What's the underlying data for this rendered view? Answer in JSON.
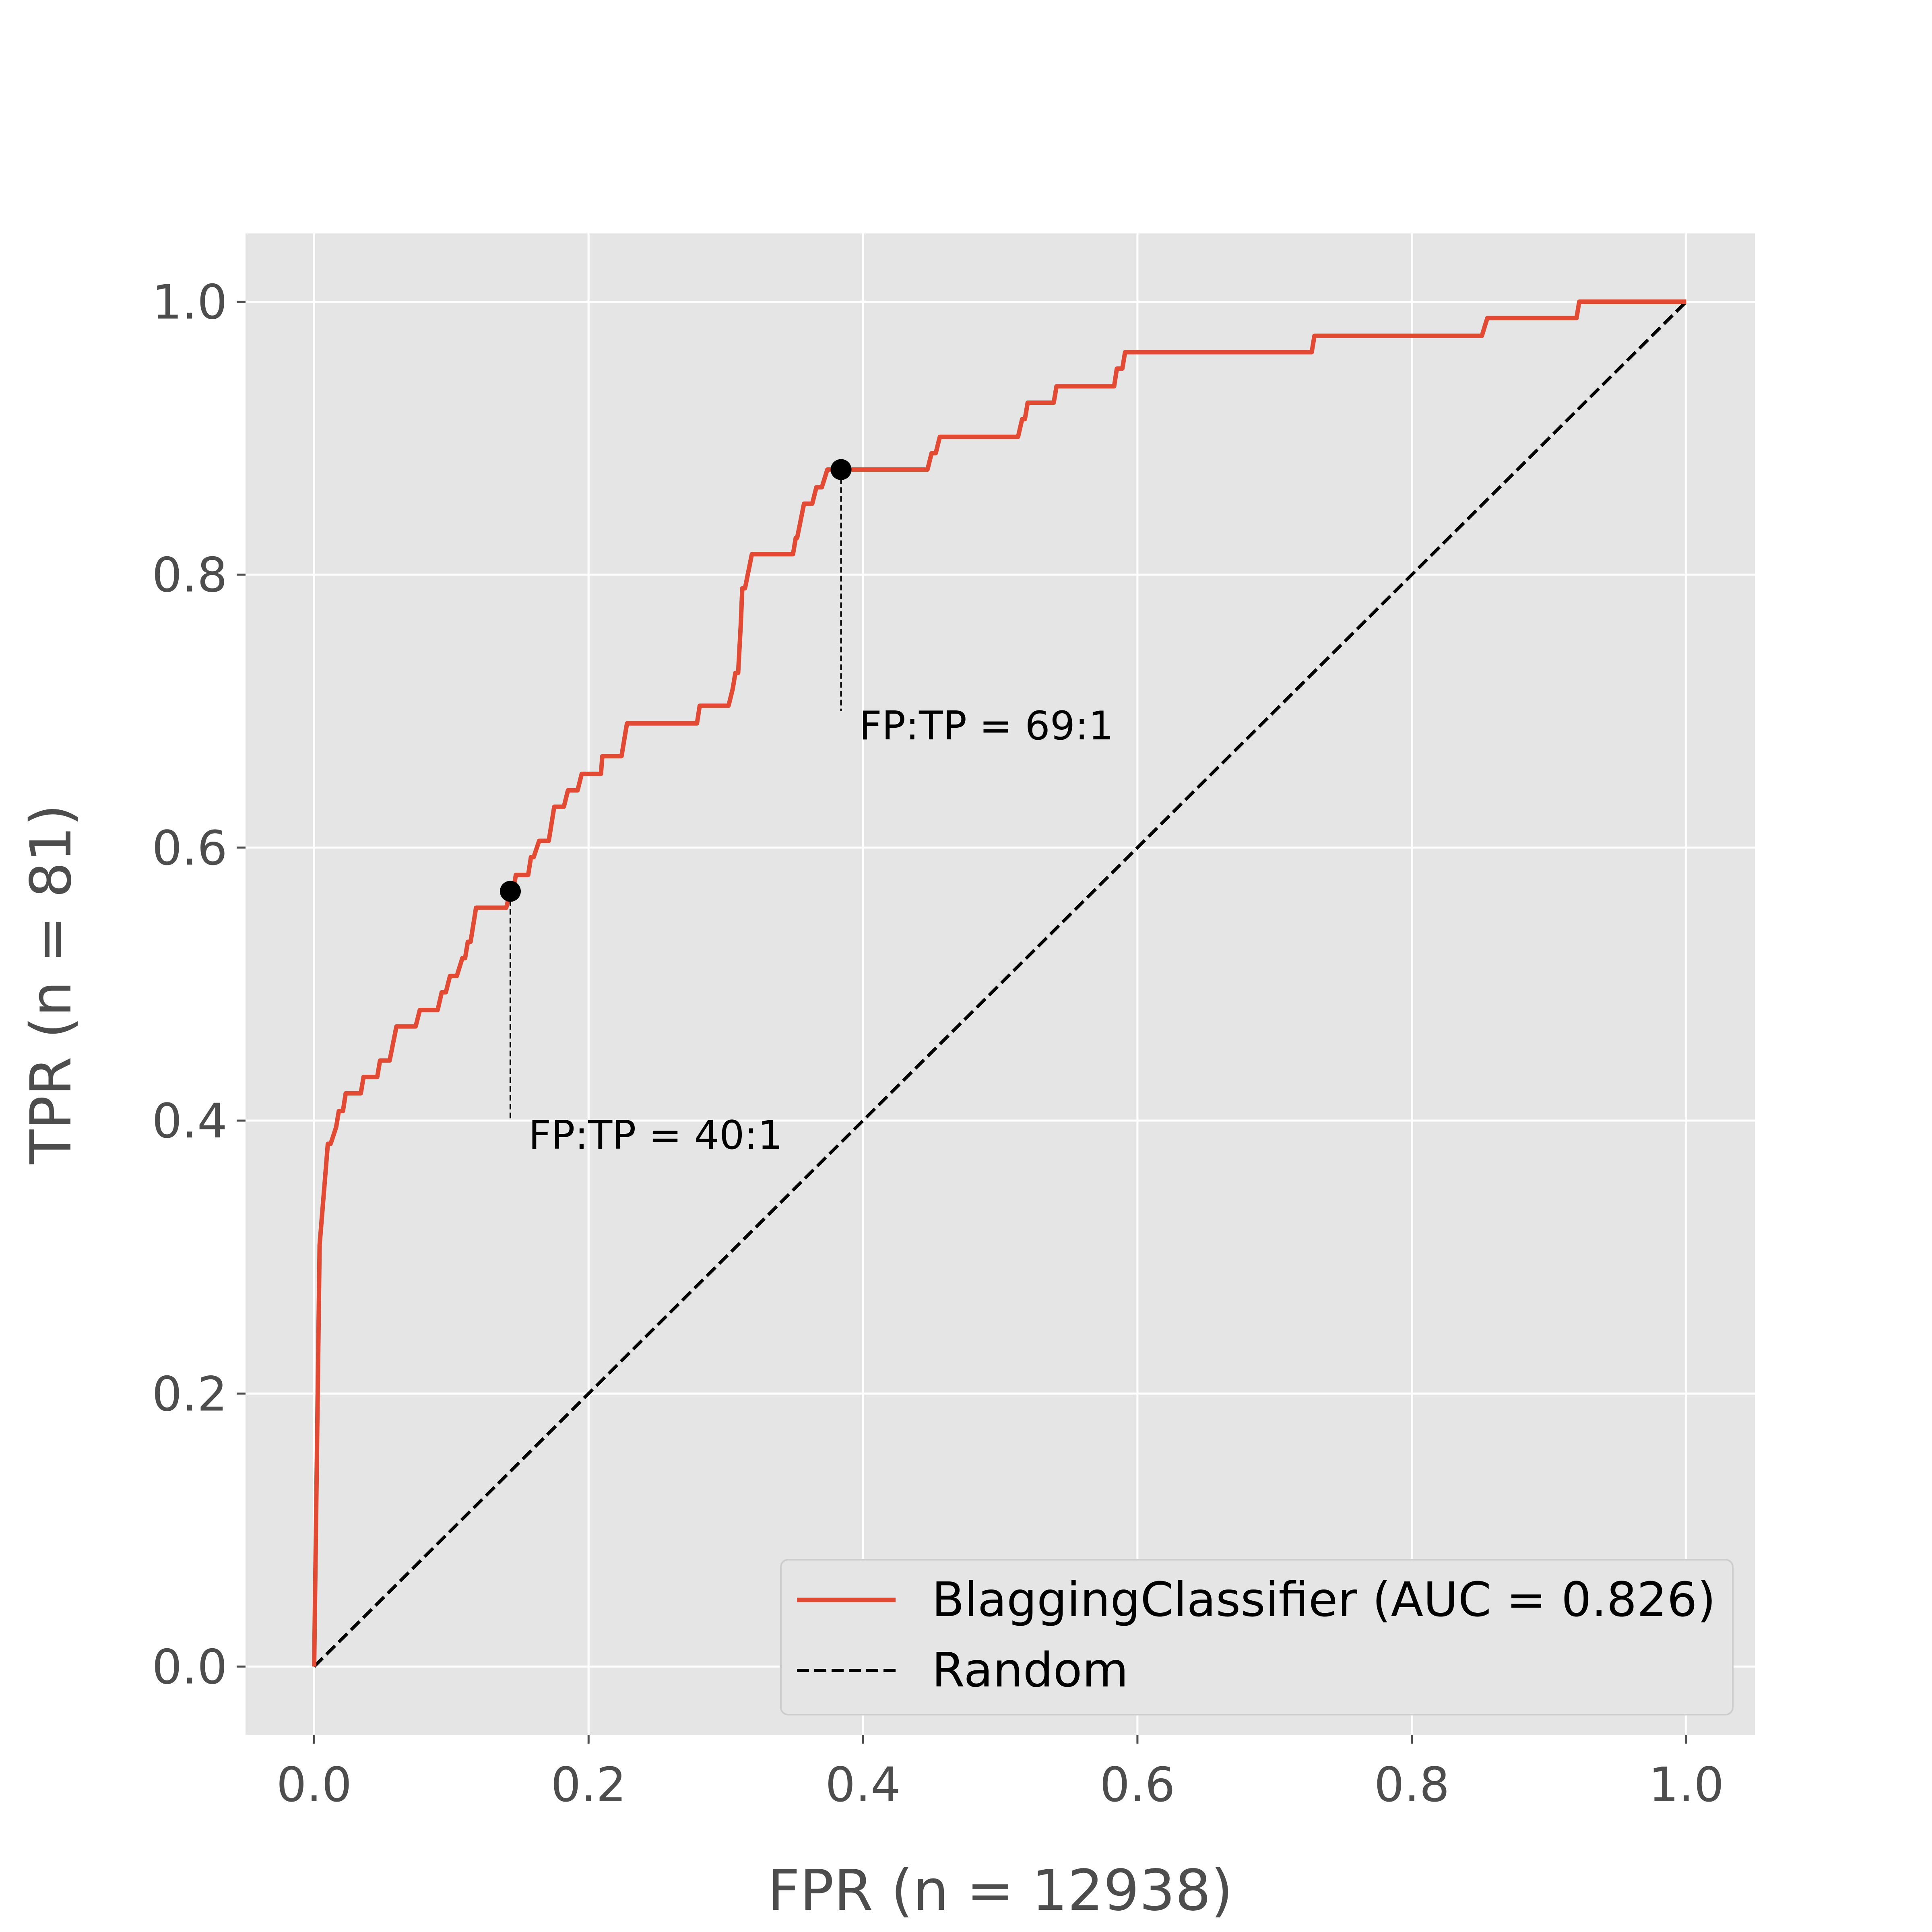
{
  "chart_data": {
    "type": "line",
    "xlabel": "FPR (n = 12938)",
    "ylabel": "TPR (n = 81)",
    "xlim": [
      -0.05,
      1.05
    ],
    "ylim": [
      -0.05,
      1.05
    ],
    "x_ticks": [
      0.0,
      0.2,
      0.4,
      0.6,
      0.8,
      1.0
    ],
    "y_ticks": [
      0.0,
      0.2,
      0.4,
      0.6,
      0.8,
      1.0
    ],
    "x_tick_labels": [
      "0.0",
      "0.2",
      "0.4",
      "0.6",
      "0.8",
      "1.0"
    ],
    "y_tick_labels": [
      "0.0",
      "0.2",
      "0.4",
      "0.6",
      "0.8",
      "1.0"
    ],
    "grid": true,
    "legend_position": "lower-right",
    "colors": {
      "background": "#e5e5e5",
      "grid": "#ffffff",
      "roc": "#e24a33",
      "random": "#000000",
      "text": "#4d4d4d"
    },
    "series": [
      {
        "name": "BlaggingClassifier (AUC = 0.826)",
        "style": "solid",
        "points": [
          [
            0.0,
            0.0
          ],
          [
            0.004,
            0.309
          ],
          [
            0.01,
            0.383
          ],
          [
            0.012,
            0.383
          ],
          [
            0.016,
            0.395
          ],
          [
            0.018,
            0.407
          ],
          [
            0.021,
            0.407
          ],
          [
            0.023,
            0.42
          ],
          [
            0.034,
            0.42
          ],
          [
            0.036,
            0.432
          ],
          [
            0.046,
            0.432
          ],
          [
            0.048,
            0.444
          ],
          [
            0.055,
            0.444
          ],
          [
            0.06,
            0.469
          ],
          [
            0.074,
            0.469
          ],
          [
            0.077,
            0.481
          ],
          [
            0.09,
            0.481
          ],
          [
            0.093,
            0.494
          ],
          [
            0.096,
            0.494
          ],
          [
            0.099,
            0.506
          ],
          [
            0.104,
            0.506
          ],
          [
            0.108,
            0.519
          ],
          [
            0.11,
            0.519
          ],
          [
            0.112,
            0.531
          ],
          [
            0.114,
            0.531
          ],
          [
            0.118,
            0.556
          ],
          [
            0.14,
            0.556
          ],
          [
            0.143,
            0.568
          ],
          [
            0.145,
            0.568
          ],
          [
            0.147,
            0.58
          ],
          [
            0.156,
            0.58
          ],
          [
            0.158,
            0.593
          ],
          [
            0.16,
            0.593
          ],
          [
            0.164,
            0.605
          ],
          [
            0.171,
            0.605
          ],
          [
            0.175,
            0.63
          ],
          [
            0.182,
            0.63
          ],
          [
            0.185,
            0.642
          ],
          [
            0.192,
            0.642
          ],
          [
            0.195,
            0.654
          ],
          [
            0.209,
            0.654
          ],
          [
            0.21,
            0.667
          ],
          [
            0.224,
            0.667
          ],
          [
            0.228,
            0.691
          ],
          [
            0.279,
            0.691
          ],
          [
            0.281,
            0.704
          ],
          [
            0.302,
            0.704
          ],
          [
            0.305,
            0.716
          ],
          [
            0.307,
            0.728
          ],
          [
            0.309,
            0.728
          ],
          [
            0.311,
            0.765
          ],
          [
            0.312,
            0.79
          ],
          [
            0.314,
            0.79
          ],
          [
            0.319,
            0.815
          ],
          [
            0.349,
            0.815
          ],
          [
            0.351,
            0.827
          ],
          [
            0.352,
            0.827
          ],
          [
            0.357,
            0.852
          ],
          [
            0.363,
            0.852
          ],
          [
            0.366,
            0.864
          ],
          [
            0.37,
            0.864
          ],
          [
            0.374,
            0.877
          ],
          [
            0.447,
            0.877
          ],
          [
            0.45,
            0.889
          ],
          [
            0.453,
            0.889
          ],
          [
            0.456,
            0.901
          ],
          [
            0.513,
            0.901
          ],
          [
            0.516,
            0.914
          ],
          [
            0.518,
            0.914
          ],
          [
            0.52,
            0.926
          ],
          [
            0.539,
            0.926
          ],
          [
            0.541,
            0.938
          ],
          [
            0.583,
            0.938
          ],
          [
            0.585,
            0.951
          ],
          [
            0.589,
            0.951
          ],
          [
            0.591,
            0.963
          ],
          [
            0.727,
            0.963
          ],
          [
            0.729,
            0.975
          ],
          [
            0.851,
            0.975
          ],
          [
            0.855,
            0.988
          ],
          [
            0.92,
            0.988
          ],
          [
            0.922,
            1.0
          ],
          [
            1.0,
            1.0
          ]
        ]
      },
      {
        "name": "Random",
        "style": "dashed",
        "points": [
          [
            0.0,
            0.0
          ],
          [
            1.0,
            1.0
          ]
        ]
      }
    ],
    "markers": [
      {
        "x": 0.143,
        "y": 0.568,
        "label_y": 0.4,
        "label": "FP:TP = 40:1"
      },
      {
        "x": 0.384,
        "y": 0.877,
        "label_y": 0.7,
        "label": "FP:TP = 69:1"
      }
    ]
  }
}
